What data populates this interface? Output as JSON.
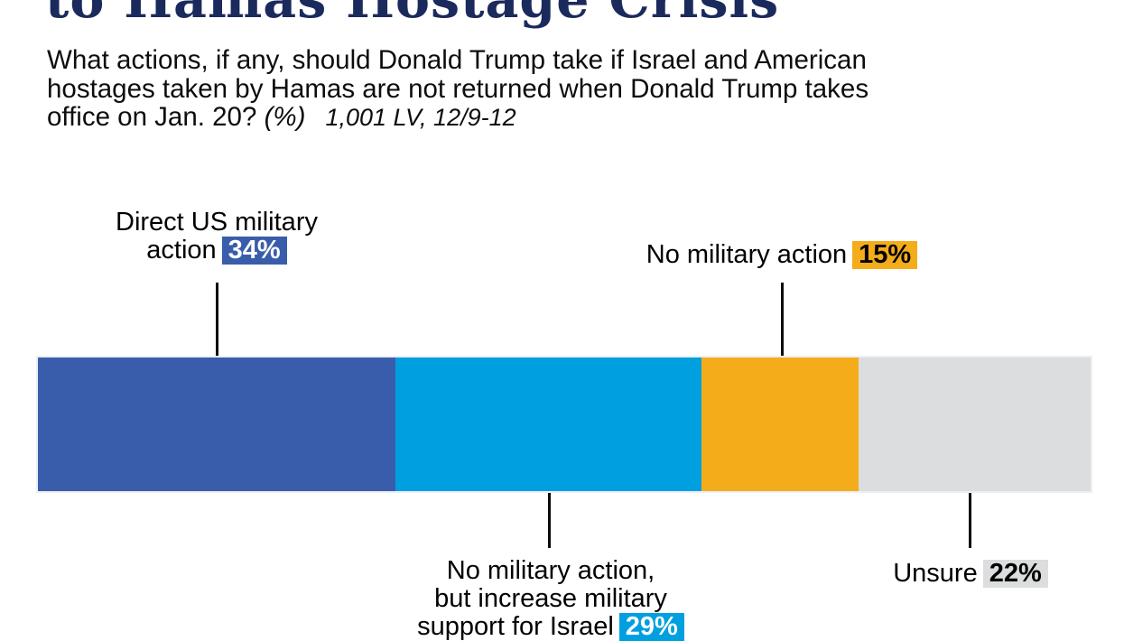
{
  "header": {
    "title": "to Hamas Hostage Crisis",
    "question_lines": [
      "What actions, if any, should Donald Trump take if Israel and American",
      "hostages taken by Hamas are not returned when Donald Trump takes",
      "office on Jan. 20?"
    ],
    "unit_note": "(%)",
    "sample_note": "1,001 LV, 12/9-12"
  },
  "chart_data": {
    "type": "bar",
    "variant": "horizontal-stacked-single-bar",
    "unit": "%",
    "total": 100,
    "series": [
      {
        "name": "Direct US military action",
        "value": 34,
        "color": "#3a5dab",
        "value_text_color": "#ffffff"
      },
      {
        "name": "No military action, but increase military support for Israel",
        "value": 29,
        "color": "#009fe0",
        "value_text_color": "#ffffff"
      },
      {
        "name": "No military action",
        "value": 15,
        "color": "#f4ac1a",
        "value_text_color": "#000000"
      },
      {
        "name": "Unsure",
        "value": 22,
        "color": "#dcddde",
        "value_text_color": "#000000"
      }
    ],
    "legend_position": "callout-labels",
    "grid": false
  },
  "annotations": {
    "direct": {
      "line1": "Direct US military",
      "line2": "action",
      "value": "34%"
    },
    "no_action": {
      "label": "No military action",
      "value": "15%"
    },
    "support": {
      "line1": "No military action,",
      "line2": "but increase military",
      "line3": "support for Israel",
      "value": "29%"
    },
    "unsure": {
      "label": "Unsure",
      "value": "22%"
    }
  },
  "colors": {
    "title_navy": "#1b2a5c",
    "leader_line": "#0b0b0b",
    "bar_frame": "#edeff6",
    "background": "#ffffff"
  }
}
